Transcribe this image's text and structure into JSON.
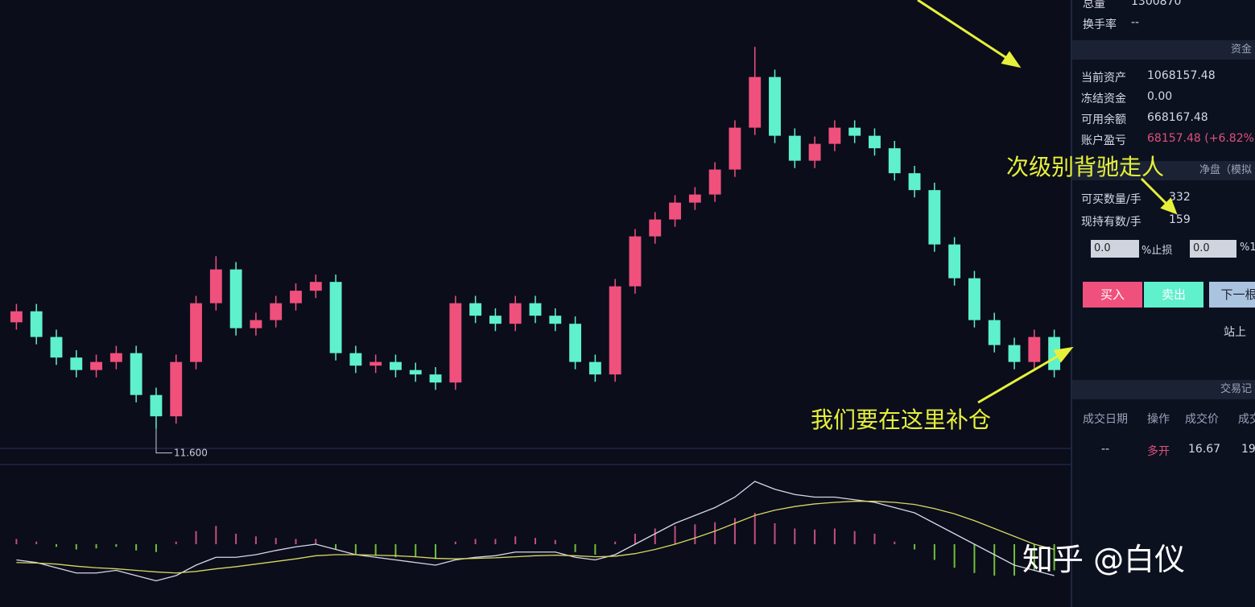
{
  "chart_data": {
    "type": "candlestick",
    "open": [
      13.05,
      13.2,
      12.85,
      12.57,
      12.4,
      12.51,
      12.63,
      12.06,
      11.77,
      12.51,
      13.31,
      13.77,
      12.97,
      13.08,
      13.31,
      13.48,
      13.6,
      12.63,
      12.46,
      12.51,
      12.4,
      12.34,
      12.23,
      13.31,
      13.14,
      13.03,
      13.31,
      13.14,
      13.03,
      12.51,
      12.34,
      13.54,
      14.22,
      14.45,
      14.68,
      14.79,
      15.13,
      15.7,
      16.39,
      15.59,
      15.25,
      15.48,
      15.7,
      15.59,
      15.42,
      15.08,
      14.85,
      14.11,
      13.65,
      13.08,
      12.74,
      12.51,
      12.85
    ],
    "high": [
      13.3,
      13.3,
      12.95,
      12.67,
      12.61,
      12.73,
      12.73,
      12.16,
      12.61,
      13.41,
      13.95,
      13.87,
      13.18,
      13.41,
      13.58,
      13.7,
      13.7,
      12.73,
      12.61,
      12.61,
      12.5,
      12.44,
      13.41,
      13.41,
      13.24,
      13.41,
      13.41,
      13.24,
      13.13,
      12.61,
      13.64,
      14.32,
      14.55,
      14.78,
      14.89,
      15.23,
      15.8,
      16.8,
      16.49,
      15.69,
      15.58,
      15.8,
      15.8,
      15.69,
      15.52,
      15.18,
      14.95,
      14.21,
      13.75,
      13.18,
      12.84,
      12.95,
      12.95
    ],
    "low": [
      12.95,
      12.75,
      12.47,
      12.3,
      12.3,
      12.41,
      11.96,
      11.6,
      11.67,
      12.41,
      13.21,
      12.87,
      12.87,
      12.98,
      13.21,
      13.38,
      12.53,
      12.36,
      12.36,
      12.3,
      12.24,
      12.13,
      12.13,
      13.04,
      12.93,
      12.93,
      13.04,
      12.93,
      12.41,
      12.24,
      12.24,
      13.44,
      14.12,
      14.35,
      14.58,
      14.69,
      15.03,
      15.6,
      15.49,
      15.15,
      15.15,
      15.38,
      15.49,
      15.32,
      14.98,
      14.75,
      14.01,
      13.55,
      12.98,
      12.64,
      12.41,
      12.41,
      12.3
    ],
    "close": [
      13.2,
      12.85,
      12.57,
      12.4,
      12.51,
      12.63,
      12.06,
      11.77,
      12.51,
      13.31,
      13.77,
      12.97,
      13.08,
      13.31,
      13.48,
      13.6,
      12.63,
      12.46,
      12.51,
      12.4,
      12.34,
      12.23,
      13.31,
      13.14,
      13.03,
      13.31,
      13.14,
      13.03,
      12.51,
      12.34,
      13.54,
      14.22,
      14.45,
      14.68,
      14.79,
      15.13,
      15.7,
      16.39,
      15.59,
      15.25,
      15.48,
      15.7,
      15.59,
      15.42,
      15.08,
      14.85,
      14.11,
      13.65,
      13.08,
      12.74,
      12.51,
      12.85,
      12.4
    ],
    "up_color": "#f0507c",
    "down_color": "#5ff0cc",
    "ylim": [
      11.3,
      17.0
    ],
    "low_label": {
      "value": 11.6,
      "label": "11.600"
    },
    "macd": {
      "hist": [
        0.1,
        0.05,
        -0.05,
        -0.1,
        -0.08,
        -0.05,
        -0.12,
        -0.15,
        0.05,
        0.25,
        0.35,
        0.2,
        0.15,
        0.12,
        0.1,
        0.1,
        -0.1,
        -0.2,
        -0.22,
        -0.25,
        -0.25,
        -0.28,
        0.05,
        0.1,
        0.1,
        0.15,
        0.12,
        0.08,
        -0.15,
        -0.2,
        0.05,
        0.2,
        0.3,
        0.35,
        0.38,
        0.42,
        0.5,
        0.6,
        0.4,
        0.3,
        0.28,
        0.3,
        0.25,
        0.2,
        0.05,
        -0.1,
        -0.3,
        -0.45,
        -0.55,
        -0.6,
        -0.6,
        -0.5,
        -0.5
      ],
      "dif": [
        -0.3,
        -0.35,
        -0.45,
        -0.55,
        -0.55,
        -0.5,
        -0.6,
        -0.7,
        -0.6,
        -0.4,
        -0.25,
        -0.25,
        -0.2,
        -0.12,
        -0.05,
        0.0,
        -0.1,
        -0.2,
        -0.25,
        -0.3,
        -0.35,
        -0.4,
        -0.3,
        -0.25,
        -0.22,
        -0.15,
        -0.15,
        -0.15,
        -0.25,
        -0.3,
        -0.2,
        0.0,
        0.2,
        0.4,
        0.55,
        0.7,
        0.9,
        1.2,
        1.05,
        0.95,
        0.9,
        0.9,
        0.85,
        0.8,
        0.7,
        0.6,
        0.4,
        0.2,
        0.0,
        -0.2,
        -0.4,
        -0.5,
        -0.6
      ],
      "dea": [
        -0.35,
        -0.36,
        -0.38,
        -0.42,
        -0.45,
        -0.47,
        -0.5,
        -0.53,
        -0.55,
        -0.52,
        -0.47,
        -0.43,
        -0.38,
        -0.33,
        -0.28,
        -0.22,
        -0.2,
        -0.2,
        -0.21,
        -0.22,
        -0.24,
        -0.27,
        -0.28,
        -0.27,
        -0.26,
        -0.24,
        -0.22,
        -0.21,
        -0.22,
        -0.24,
        -0.23,
        -0.18,
        -0.1,
        0.0,
        0.12,
        0.25,
        0.4,
        0.55,
        0.65,
        0.72,
        0.77,
        0.8,
        0.82,
        0.82,
        0.8,
        0.76,
        0.68,
        0.58,
        0.45,
        0.3,
        0.15,
        0.0,
        -0.1
      ],
      "ylim": [
        -1.2,
        1.4
      ],
      "pos_color": "#c0507a",
      "neg_color": "#6fbf3a",
      "dif_color": "#d8d8e8",
      "dea_color": "#d8d860"
    }
  },
  "panel": {
    "top": [
      [
        "总量",
        "1300870"
      ],
      [
        "换手率",
        "--"
      ]
    ],
    "funds_header": "资金",
    "funds": [
      [
        "当前资产",
        "1068157.48"
      ],
      [
        "冻结资金",
        "0.00"
      ],
      [
        "可用余额",
        "668167.48"
      ],
      [
        "账户盈亏",
        "68157.48 (+6.82%)"
      ]
    ],
    "order_header": "净盘（模拟",
    "order": [
      [
        "可买数量/手",
        "332"
      ],
      [
        "现持有数/手",
        "159"
      ]
    ],
    "inputs": [
      "0.0",
      "%止损",
      "0.0",
      "%1"
    ],
    "buttons": [
      "买入",
      "卖出",
      "下一根"
    ],
    "note": "站上",
    "records_header": "交易记",
    "records_columns": [
      "成交日期",
      "操作",
      "成交价",
      "成交"
    ],
    "records_rows": [
      [
        "--",
        "多开",
        "16.67",
        "19"
      ]
    ]
  },
  "annotations": {
    "exit": "次级别背驰走人",
    "add": "我们要在这里补仓",
    "watermark": "知乎 @白仪"
  }
}
